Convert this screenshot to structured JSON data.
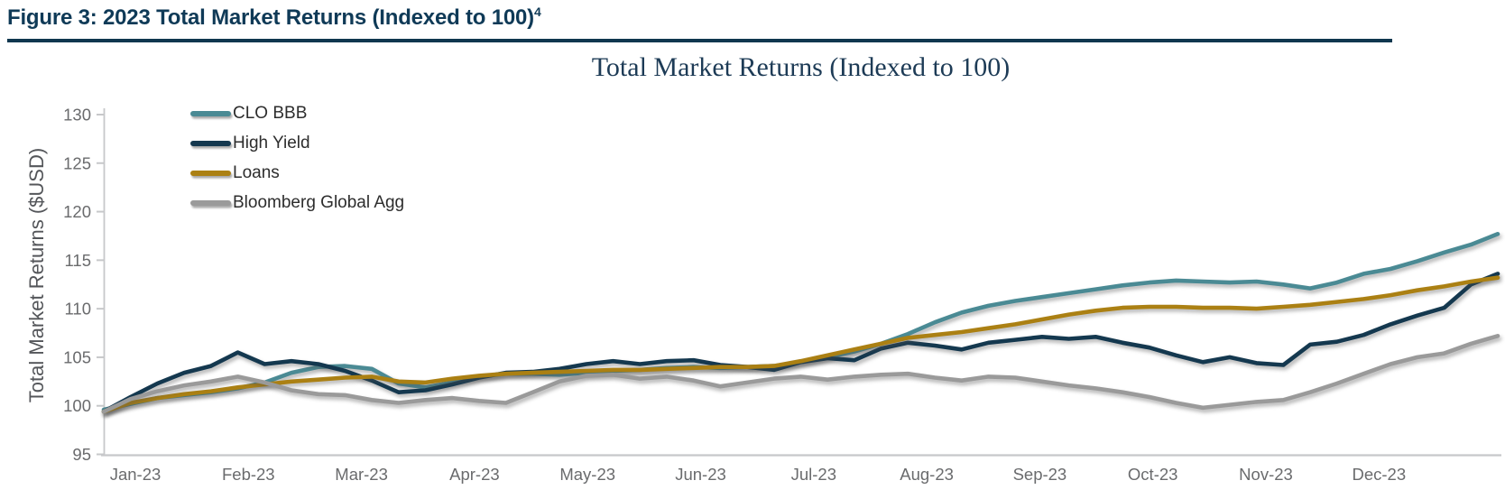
{
  "figure_header": {
    "label": "Figure 3: 2023 Total Market Returns (Indexed to 100)",
    "footnote_marker": "4",
    "heading_color": "#0f3a57",
    "rule_color": "#10374f"
  },
  "chart_data": {
    "type": "line",
    "title": "Total Market Returns (Indexed to 100)",
    "xlabel": "",
    "ylabel": "Total Market Returns ($USD)",
    "ylim": [
      95,
      130
    ],
    "ytick_step": 5,
    "yticks": [
      95,
      100,
      105,
      110,
      115,
      120,
      125,
      130
    ],
    "grid": false,
    "legend_position": "inside-top-left",
    "x_resolution": "weekly, Jan 2023 through Dec 2023 (53 points per series)",
    "categories": [
      "Jan-23",
      "Feb-23",
      "Mar-23",
      "Apr-23",
      "May-23",
      "Jun-23",
      "Jul-23",
      "Aug-23",
      "Sep-23",
      "Oct-23",
      "Nov-23",
      "Dec-23"
    ],
    "axis_text_color": "#6a6b6d",
    "axis_line_color": "#c7c8ca",
    "title_color": "#1d3b56",
    "series": [
      {
        "name": "CLO BBB",
        "color": "#4a8a94",
        "values": [
          99.6,
          100.2,
          100.8,
          101.1,
          101.4,
          101.8,
          102.4,
          103.4,
          104.0,
          104.1,
          103.8,
          102.3,
          101.9,
          102.4,
          103.0,
          103.3,
          103.3,
          103.2,
          103.4,
          103.6,
          103.7,
          103.9,
          104.0,
          103.9,
          104.0,
          104.1,
          104.5,
          105.0,
          105.6,
          106.4,
          107.4,
          108.6,
          109.6,
          110.3,
          110.8,
          111.2,
          111.6,
          112.0,
          112.4,
          112.7,
          112.9,
          112.8,
          112.7,
          112.8,
          112.5,
          112.1,
          112.7,
          113.6,
          114.1,
          114.9,
          115.8,
          116.6,
          117.7
        ]
      },
      {
        "name": "High Yield",
        "color": "#14384f",
        "values": [
          99.4,
          100.9,
          102.3,
          103.4,
          104.1,
          105.5,
          104.3,
          104.6,
          104.3,
          103.6,
          102.6,
          101.4,
          101.6,
          102.2,
          102.9,
          103.4,
          103.5,
          103.8,
          104.3,
          104.6,
          104.3,
          104.6,
          104.7,
          104.2,
          104.0,
          103.7,
          104.5,
          104.9,
          104.7,
          105.9,
          106.5,
          106.2,
          105.8,
          106.5,
          106.8,
          107.1,
          106.9,
          107.1,
          106.5,
          106.0,
          105.2,
          104.5,
          105.0,
          104.4,
          104.2,
          106.3,
          106.6,
          107.3,
          108.4,
          109.3,
          110.1,
          112.5,
          113.6
        ]
      },
      {
        "name": "Loans",
        "color": "#ab8013",
        "values": [
          99.4,
          100.3,
          100.8,
          101.2,
          101.5,
          101.9,
          102.2,
          102.5,
          102.7,
          102.9,
          103.0,
          102.5,
          102.4,
          102.8,
          103.1,
          103.3,
          103.4,
          103.5,
          103.6,
          103.7,
          103.7,
          103.8,
          103.9,
          104.0,
          104.0,
          104.1,
          104.6,
          105.2,
          105.8,
          106.4,
          107.0,
          107.3,
          107.6,
          108.0,
          108.4,
          108.9,
          109.4,
          109.8,
          110.1,
          110.2,
          110.2,
          110.1,
          110.1,
          110.0,
          110.2,
          110.4,
          110.7,
          111.0,
          111.4,
          111.9,
          112.3,
          112.8,
          113.2
        ]
      },
      {
        "name": "Bloomberg Global Agg",
        "color": "#9a9a9a",
        "values": [
          99.4,
          100.7,
          101.5,
          102.1,
          102.5,
          103.0,
          102.4,
          101.6,
          101.2,
          101.1,
          100.6,
          100.3,
          100.6,
          100.8,
          100.5,
          100.3,
          101.4,
          102.5,
          103.1,
          103.2,
          102.8,
          103.0,
          102.6,
          102.0,
          102.4,
          102.8,
          103.0,
          102.7,
          103.0,
          103.2,
          103.3,
          102.9,
          102.6,
          103.0,
          102.9,
          102.5,
          102.1,
          101.8,
          101.4,
          100.9,
          100.3,
          99.8,
          100.1,
          100.4,
          100.6,
          101.4,
          102.3,
          103.3,
          104.3,
          105.0,
          105.4,
          106.4,
          107.2
        ]
      }
    ]
  }
}
